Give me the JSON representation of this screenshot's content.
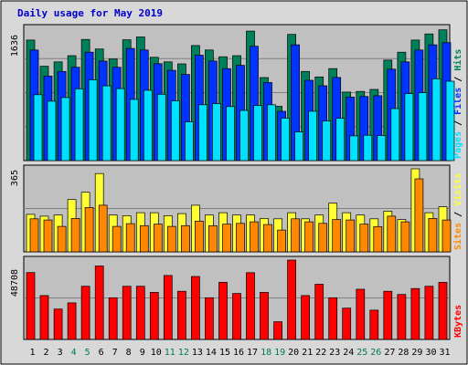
{
  "chart_data": {
    "title": "Daily usage for May 2019",
    "type": "bar",
    "days": [
      "1",
      "2",
      "3",
      "4",
      "5",
      "6",
      "7",
      "8",
      "9",
      "10",
      "11",
      "12",
      "13",
      "14",
      "15",
      "16",
      "17",
      "18",
      "19",
      "20",
      "21",
      "22",
      "23",
      "24",
      "25",
      "26",
      "27",
      "28",
      "29",
      "30",
      "31"
    ],
    "weekend_days": [
      "4",
      "5",
      "11",
      "12",
      "18",
      "19",
      "25",
      "26"
    ],
    "colors": {
      "hits": "#00805a",
      "files": "#0033ff",
      "pages": "#00e0ff",
      "visits": "#ffff33",
      "sites": "#ff8800",
      "kbytes": "#ff0000",
      "weekday_label": "#000000",
      "weekend_label": "#007a55",
      "panel_bg": "#c0c0c0",
      "frame_bg": "#d8d8d8"
    },
    "panels": [
      {
        "key": "hits_files_pages",
        "ymax": 1636,
        "ytick_label": "1636",
        "legend": [
          {
            "text": "Pages",
            "color": "#00e0ff"
          },
          {
            "text": " / ",
            "color": "#000000"
          },
          {
            "text": "Files",
            "color": "#0033ff"
          },
          {
            "text": " / ",
            "color": "#000000"
          },
          {
            "text": "Hits",
            "color": "#00805a"
          }
        ],
        "series": [
          {
            "name": "Hits",
            "color": "#00805a",
            "values": [
              1491,
              1167,
              1221,
              1298,
              1498,
              1380,
              1256,
              1494,
              1529,
              1277,
              1221,
              1196,
              1423,
              1367,
              1284,
              1298,
              1601,
              1027,
              671,
              1560,
              1102,
              1035,
              1137,
              847,
              855,
              880,
              1242,
              1340,
              1491,
              1566,
              1617
            ]
          },
          {
            "name": "Files",
            "color": "#0033ff",
            "values": [
              1367,
              1045,
              1102,
              1154,
              1340,
              1231,
              1154,
              1387,
              1367,
              1198,
              1116,
              1065,
              1303,
              1231,
              1137,
              1178,
              1414,
              966,
              609,
              1432,
              993,
              925,
              1028,
              785,
              793,
              802,
              1130,
              1221,
              1367,
              1432,
              1458
            ]
          },
          {
            "name": "Pages",
            "color": "#00e0ff",
            "values": [
              815,
              735,
              780,
              888,
              1000,
              924,
              890,
              757,
              870,
              820,
              739,
              480,
              690,
              704,
              668,
              620,
              680,
              690,
              525,
              355,
              610,
              491,
              524,
              306,
              314,
              310,
              643,
              828,
              840,
              1011,
              982
            ]
          }
        ]
      },
      {
        "key": "visits_sites",
        "ymax": 365,
        "ytick_label": "365",
        "legend": [
          {
            "text": "Sites",
            "color": "#ff8800"
          },
          {
            "text": " / ",
            "color": "#000000"
          },
          {
            "text": "Visits",
            "color": "#ffff33"
          }
        ],
        "series": [
          {
            "name": "Visits",
            "color": "#ffff33",
            "values": [
              165,
              157,
              162,
              230,
              262,
              344,
              162,
              159,
              172,
              172,
              159,
              168,
              205,
              162,
              172,
              162,
              162,
              147,
              145,
              172,
              145,
              162,
              214,
              172,
              162,
              145,
              179,
              142,
              365,
              172,
              198
            ]
          },
          {
            "name": "Sites",
            "color": "#ff8800",
            "values": [
              145,
              140,
              112,
              147,
              195,
              205,
              112,
              124,
              115,
              122,
              112,
              115,
              135,
              115,
              122,
              125,
              132,
              120,
              96,
              145,
              132,
              125,
              142,
              140,
              122,
              111,
              157,
              132,
              321,
              147,
              140
            ]
          }
        ]
      },
      {
        "key": "kbytes",
        "ymax": 48708,
        "ytick_label": "48708",
        "legend": [
          {
            "text": "KBytes",
            "color": "#ff0000"
          }
        ],
        "series": [
          {
            "name": "KBytes",
            "color": "#ff0000",
            "values": [
              41018,
              26916,
              18620,
              22427,
              32630,
              45054,
              25598,
              32630,
              32630,
              28908,
              39253,
              29543,
              38606,
              25598,
              35065,
              28238,
              40985,
              28908,
              10865,
              48708,
              26916,
              33848,
              25598,
              19213,
              30796,
              17963,
              29543,
              27578,
              31219,
              32630,
              35065
            ]
          }
        ]
      }
    ]
  }
}
